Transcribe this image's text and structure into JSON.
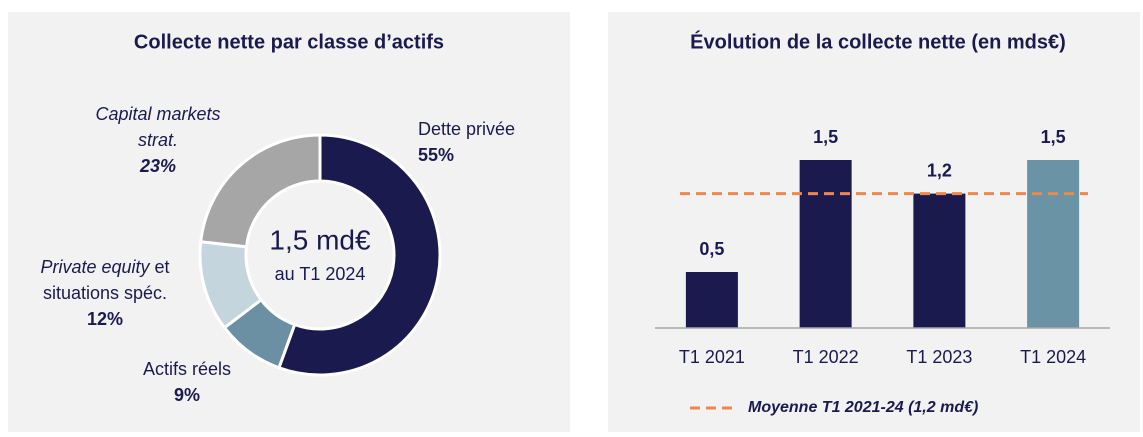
{
  "charts": [
    {
      "type": "donut",
      "title": "Collecte nette par classe d’actifs",
      "center_text": [
        "1,5 md€",
        "au T1 2024"
      ],
      "series": [
        {
          "name_parts": [
            [
              {
                "text": "Dette privée"
              }
            ]
          ],
          "color": "#1b1a4f",
          "value": 55,
          "value_label": "55%"
        },
        {
          "name_parts": [
            [
              {
                "text": "Actifs réels"
              }
            ]
          ],
          "color": "#6b8fa3",
          "value": 9,
          "value_label": "9%"
        },
        {
          "name_parts": [
            [
              {
                "text": "Private equity",
                "italic": true
              },
              {
                "text": " et"
              }
            ],
            [
              {
                "text": "situations spéc."
              }
            ]
          ],
          "color": "#c5d5de",
          "value": 12,
          "value_label": "12%"
        },
        {
          "name_parts": [
            [
              {
                "text": "Capital markets",
                "italic": true
              }
            ],
            [
              {
                "text": "strat.",
                "italic": true
              }
            ]
          ],
          "color": "#a6a6a6",
          "value": 23,
          "value_label": "23%",
          "label_italic": true
        }
      ]
    },
    {
      "type": "bar",
      "title": "Évolution de la collecte nette (en mds€)",
      "categories": [
        "T1 2021",
        "T1 2022",
        "T1 2023",
        "T1 2024"
      ],
      "values": [
        0.5,
        1.5,
        1.2,
        1.5
      ],
      "value_labels": [
        "0,5",
        "1,5",
        "1,2",
        "1,5"
      ],
      "colors": [
        "#1b1a4f",
        "#1b1a4f",
        "#1b1a4f",
        "#6b93a6"
      ],
      "ylim": [
        0,
        1.5
      ],
      "reference_line": {
        "value": 1.2,
        "label": "Moyenne T1 2021-24 (1,2 md€)",
        "color": "#f0874a"
      }
    }
  ]
}
